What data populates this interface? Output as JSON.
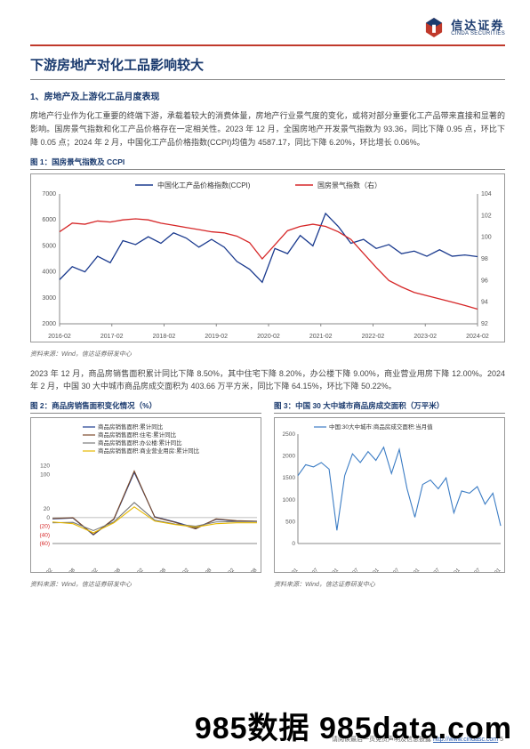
{
  "logo": {
    "cn": "信达证券",
    "en": "CINDA SECURITIES"
  },
  "title": "下游房地产对化工品影响较大",
  "subtitle": "1、房地产及上游化工品月度表现",
  "para1": "房地产行业作为化工重要的终端下游，承载着较大的消费体量，房地产行业景气度的变化，或将对部分重要化工产品带来直接和显著的影响。国房景气指数和化工产品价格存在一定相关性。2023 年 12 月，全国房地产开发景气指数为 93.36，同比下降 0.95 点，环比下降 0.05 点；2024 年 2 月，中国化工产品价格指数(CCPI)均值为 4587.17，同比下降 6.20%，环比增长 0.06%。",
  "fig1": {
    "title": "图 1：国房景气指数及 CCPI",
    "legend": [
      "中国化工产品价格指数(CCPI)",
      "国房景气指数（右）"
    ],
    "series_colors": [
      "#1a3a8e",
      "#d62728"
    ],
    "x_labels": [
      "2016-02",
      "2017-02",
      "2018-02",
      "2019-02",
      "2020-02",
      "2021-02",
      "2022-02",
      "2023-02",
      "2024-02"
    ],
    "y_left": {
      "min": 2000,
      "max": 7000,
      "step": 1000
    },
    "y_right": {
      "min": 92,
      "max": 104,
      "step": 2
    },
    "ccpi": [
      3700,
      4200,
      4000,
      4600,
      4350,
      5200,
      5050,
      5350,
      5100,
      5500,
      5300,
      4950,
      5250,
      4950,
      4400,
      4100,
      3600,
      4900,
      4700,
      5400,
      5000,
      6250,
      5750,
      5100,
      5250,
      4900,
      5050,
      4700,
      4800,
      4600,
      4850,
      4600,
      4650,
      4587
    ],
    "nhci": [
      100.5,
      101.3,
      101.2,
      101.5,
      101.4,
      101.6,
      101.7,
      101.6,
      101.3,
      101.1,
      100.9,
      100.7,
      100.5,
      100.4,
      100.1,
      99.5,
      98.0,
      99.3,
      100.6,
      101.0,
      101.2,
      101.0,
      100.5,
      99.8,
      98.5,
      97.2,
      96.0,
      95.4,
      94.9,
      94.6,
      94.3,
      94.0,
      93.7,
      93.36
    ],
    "source": "资料来源：Wind，信达证券研发中心"
  },
  "para2": "2023 年 12 月，商品房销售面积累计同比下降 8.50%，其中住宅下降 8.20%，办公楼下降 9.00%，商业营业用房下降 12.00%。2024 年 2 月，中国 30 大中城市商品房成交面积为 403.66 万平方米，同比下降 64.15%，环比下降 50.22%。",
  "fig2": {
    "title": "图 2：商品房销售面积变化情况（%）",
    "legend": [
      "商品房销售面积:累计同比",
      "商品房销售面积:住宅:累计同比",
      "商品房销售面积:办公楼:累计同比",
      "商品房销售面积:商业营业用房:累计同比"
    ],
    "series_colors": [
      "#1a3a8e",
      "#7a4a2a",
      "#7a7a7a",
      "#e6b800"
    ],
    "x_labels": [
      "2019-02",
      "2019-08",
      "2020-02",
      "2020-08",
      "2021-02",
      "2021-08",
      "2022-02",
      "2022-08",
      "2023-02",
      "2023-08"
    ],
    "y": {
      "min": -60,
      "max": 140,
      "ticks": [
        -60,
        -40,
        -20,
        0,
        20,
        100,
        120
      ]
    },
    "s1": [
      -3,
      -1,
      -40,
      -4,
      105,
      2,
      -10,
      -24,
      -4,
      -8,
      -8.5
    ],
    "s2": [
      -2,
      0,
      -39,
      -3,
      108,
      1,
      -11,
      -26,
      -3,
      -7,
      -8.2
    ],
    "s3": [
      -12,
      -11,
      -30,
      -10,
      35,
      -6,
      -15,
      -20,
      -10,
      -9,
      -9.0
    ],
    "s4": [
      -10,
      -14,
      -35,
      -12,
      25,
      -8,
      -16,
      -22,
      -14,
      -12,
      -12.0
    ],
    "source": "资料来源：Wind，信达证券研发中心"
  },
  "fig3": {
    "title": "图 3：中国 30 大中城市商品房成交面积（万平米）",
    "legend": [
      "中国:30大中城市:商品房成交面积:当月值"
    ],
    "series_colors": [
      "#3b7cc4"
    ],
    "x_labels": [
      "2019-01",
      "2019-07",
      "2020-01",
      "2020-07",
      "2021-01",
      "2021-07",
      "2022-01",
      "2022-07",
      "2023-01",
      "2023-07",
      "2024-01"
    ],
    "y": {
      "min": 0,
      "max": 2500,
      "step": 500
    },
    "vals": [
      1550,
      1800,
      1750,
      1850,
      1700,
      300,
      1550,
      2050,
      1850,
      2100,
      1900,
      2200,
      1600,
      2150,
      1250,
      600,
      1350,
      1450,
      1250,
      1500,
      700,
      1200,
      1150,
      1300,
      900,
      1150,
      404
    ],
    "source": "资料来源：Wind，信达证券研发中心"
  },
  "footer": {
    "text": "请阅读最后一页免责声明及信息披露",
    "url": "http://www.cindasc.com",
    "page": "5"
  },
  "watermark": "985数据 985data.com"
}
